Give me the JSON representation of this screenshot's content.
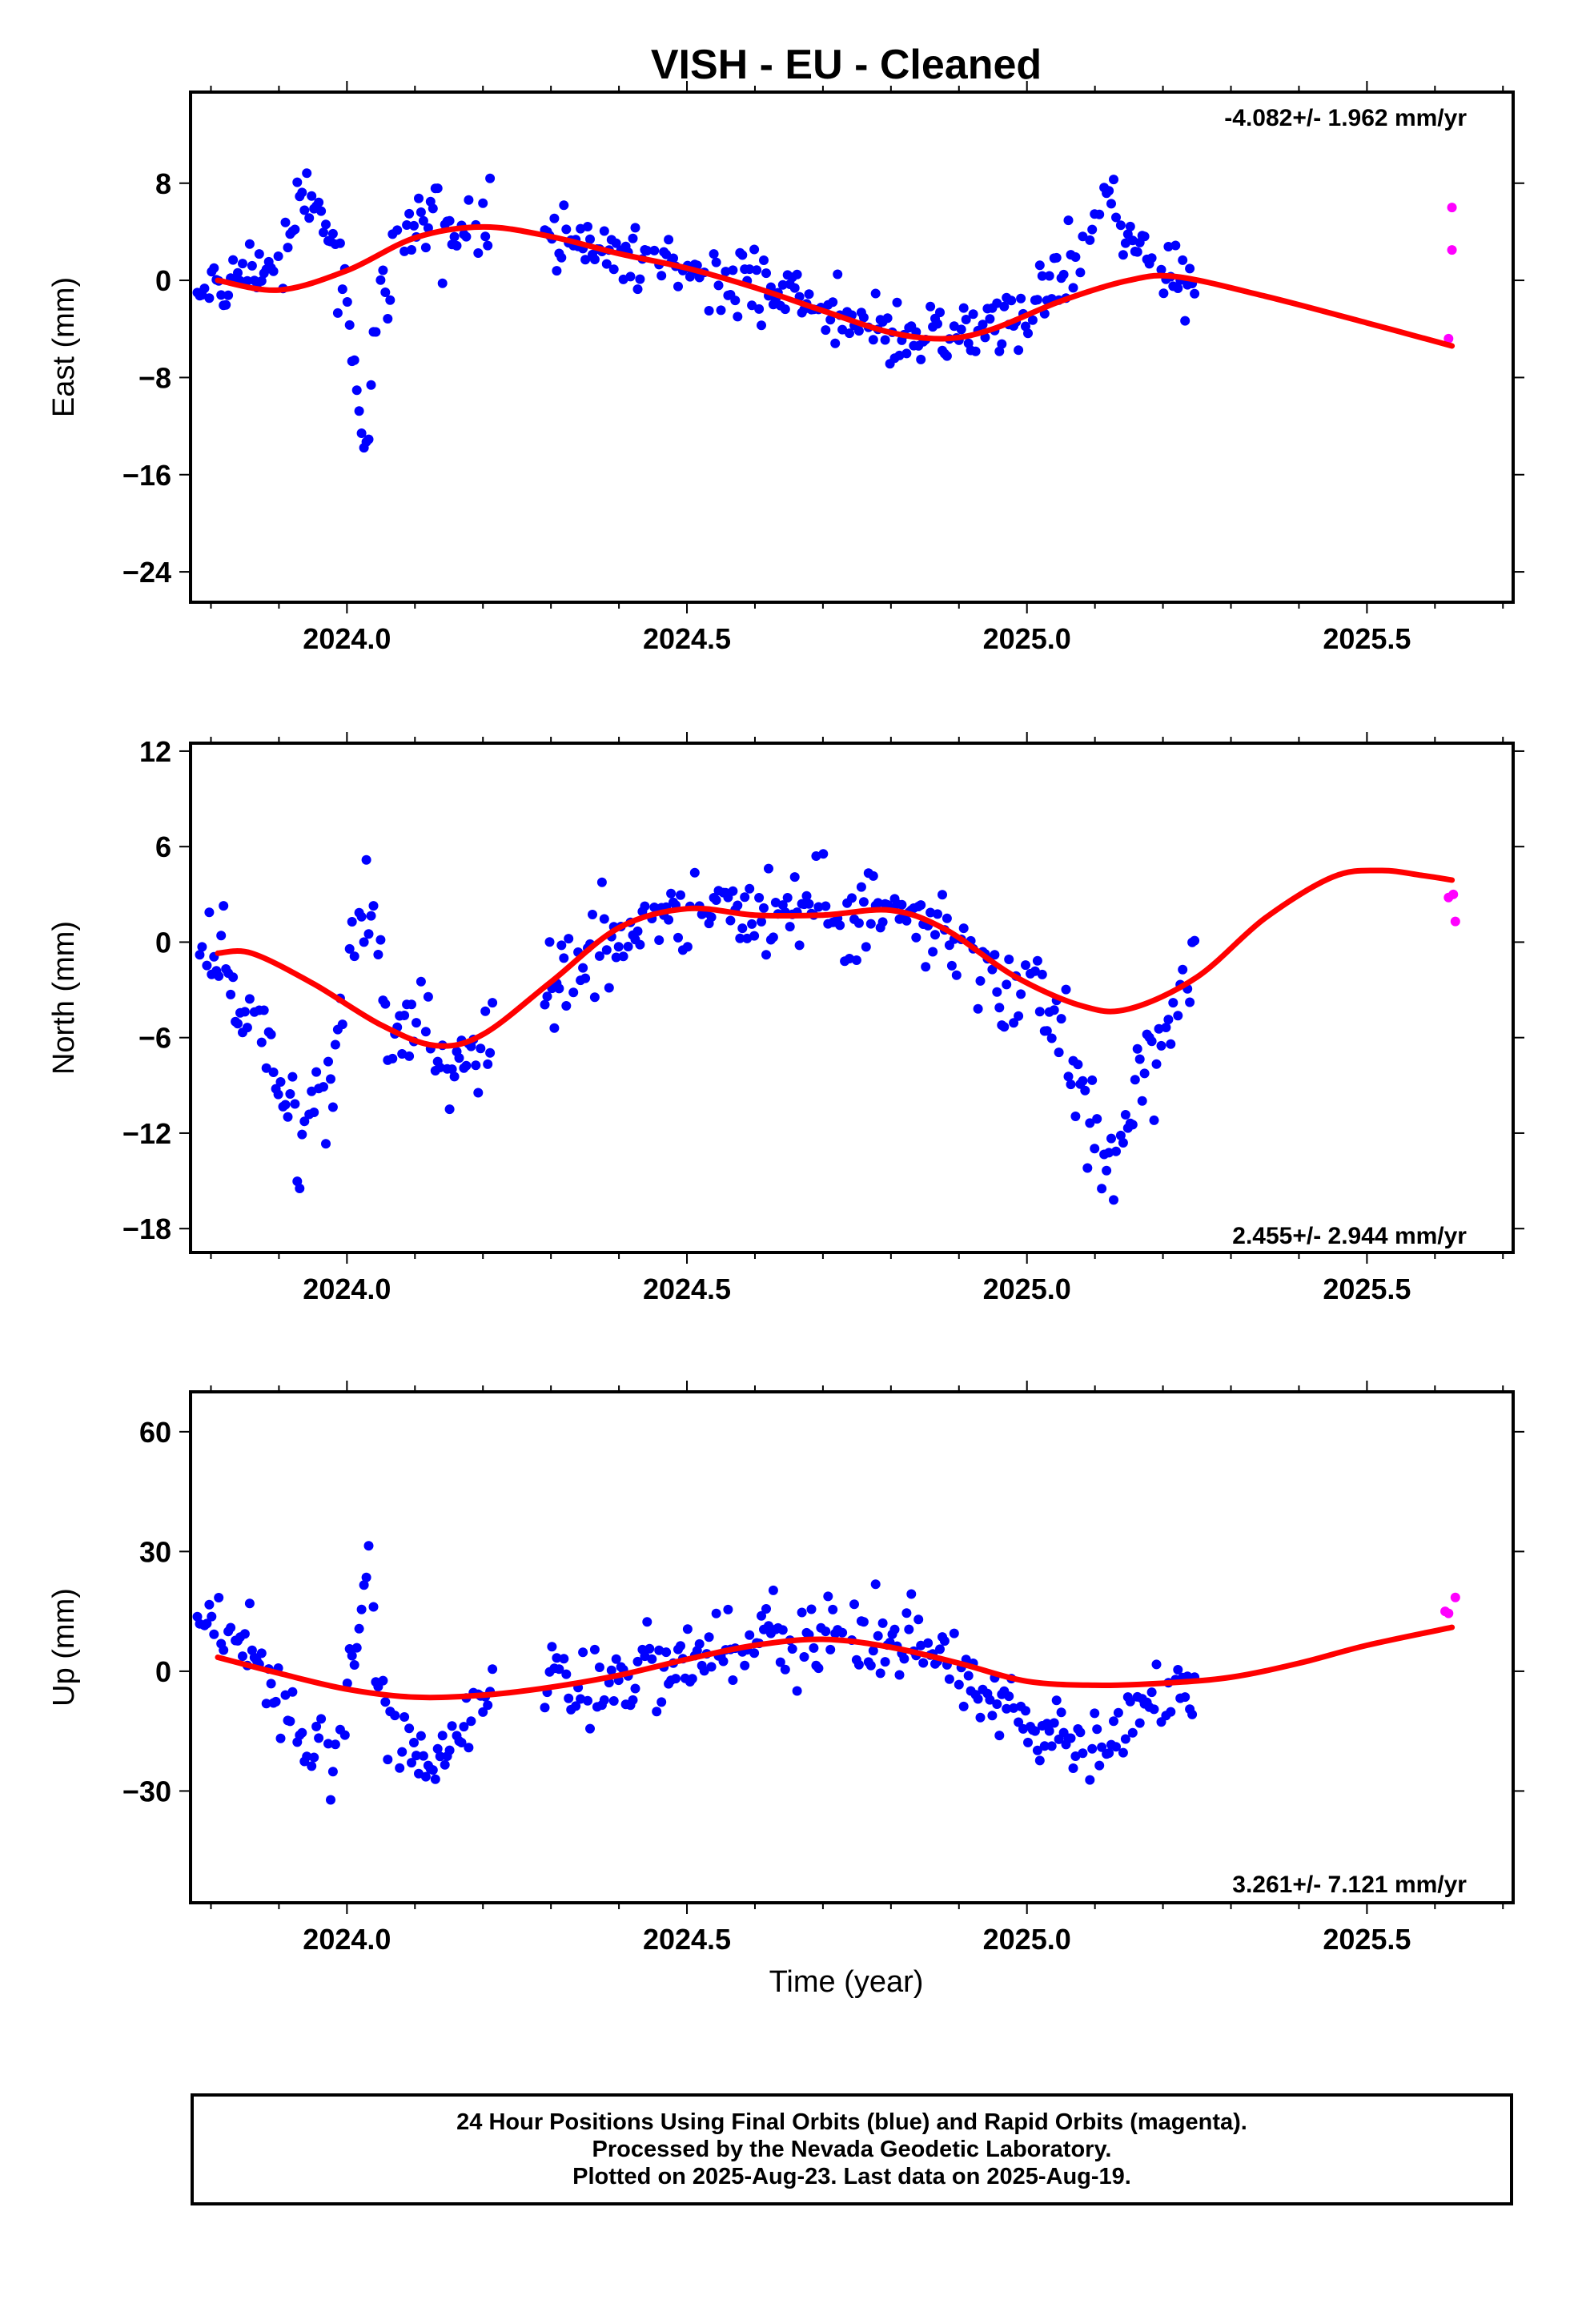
{
  "title": "VISH  - EU - Cleaned",
  "xlabel": "Time (year)",
  "footer": {
    "line1": "24 Hour Positions Using Final Orbits (blue) and Rapid Orbits (magenta).",
    "line2": "Processed by the Nevada Geodetic Laboratory.",
    "line3": "Plotted on 2025-Aug-23. Last data on 2025-Aug-19."
  },
  "colors": {
    "final": "#0000ff",
    "rapid": "#ff00ff",
    "fit": "#ff0000",
    "axis": "#000000"
  },
  "chart_data": [
    {
      "type": "scatter",
      "name": "east",
      "ylabel": "East (mm)",
      "rate": "-4.082+/- 1.962 mm/yr",
      "xlim": [
        2023.77,
        2025.715
      ],
      "ylim": [
        -26.5,
        15.5
      ],
      "xticks": [
        2024.0,
        2024.5,
        2025.0,
        2025.5
      ],
      "xtick_labels": [
        "2024.0",
        "2024.5",
        "2025.0",
        "2025.5"
      ],
      "yticks": [
        8,
        0,
        -8,
        -16,
        -24
      ],
      "ytick_labels": [
        "8",
        "0",
        "−8",
        "−16",
        "−24"
      ],
      "rapid": [
        [
          2025.625,
          6.0
        ],
        [
          2025.625,
          2.5
        ],
        [
          2025.62,
          -4.8
        ]
      ],
      "fit": [
        [
          2023.81,
          0
        ],
        [
          2023.9,
          -0.8
        ],
        [
          2024.0,
          0.8
        ],
        [
          2024.1,
          3.5
        ],
        [
          2024.2,
          4.4
        ],
        [
          2024.3,
          3.6
        ],
        [
          2024.4,
          2.2
        ],
        [
          2024.5,
          1.0
        ],
        [
          2024.6,
          -0.6
        ],
        [
          2024.7,
          -2.5
        ],
        [
          2024.8,
          -4.3
        ],
        [
          2024.88,
          -4.8
        ],
        [
          2024.95,
          -4.0
        ],
        [
          2025.05,
          -1.7
        ],
        [
          2025.15,
          0
        ],
        [
          2025.22,
          0.3
        ],
        [
          2025.35,
          -1.3
        ],
        [
          2025.5,
          -3.5
        ],
        [
          2025.625,
          -5.4
        ]
      ]
    },
    {
      "type": "scatter",
      "name": "north",
      "ylabel": "North (mm)",
      "rate": "2.455+/- 2.944 mm/yr",
      "xlim": [
        2023.77,
        2025.715
      ],
      "ylim": [
        -19.5,
        12.5
      ],
      "xticks": [
        2024.0,
        2024.5,
        2025.0,
        2025.5
      ],
      "xtick_labels": [
        "2024.0",
        "2024.5",
        "2025.0",
        "2025.5"
      ],
      "yticks": [
        12,
        6,
        0,
        -6,
        -12,
        -18
      ],
      "ytick_labels": [
        "12",
        "6",
        "0",
        "−6",
        "−12",
        "−18"
      ],
      "rapid": [
        [
          2025.62,
          2.8
        ],
        [
          2025.627,
          3.0
        ],
        [
          2025.63,
          1.3
        ]
      ],
      "fit": [
        [
          2023.81,
          -0.7
        ],
        [
          2023.86,
          -0.7
        ],
        [
          2023.95,
          -2.6
        ],
        [
          2024.05,
          -5.2
        ],
        [
          2024.13,
          -6.5
        ],
        [
          2024.2,
          -5.8
        ],
        [
          2024.3,
          -2.5
        ],
        [
          2024.4,
          0.9
        ],
        [
          2024.5,
          2.1
        ],
        [
          2024.6,
          1.7
        ],
        [
          2024.7,
          1.7
        ],
        [
          2024.8,
          2.0
        ],
        [
          2024.88,
          0.8
        ],
        [
          2024.98,
          -2.1
        ],
        [
          2025.08,
          -4.0
        ],
        [
          2025.15,
          -4.2
        ],
        [
          2025.25,
          -2.2
        ],
        [
          2025.35,
          1.5
        ],
        [
          2025.45,
          4.1
        ],
        [
          2025.52,
          4.5
        ],
        [
          2025.58,
          4.2
        ],
        [
          2025.625,
          3.9
        ]
      ]
    },
    {
      "type": "scatter",
      "name": "up",
      "ylabel": "Up (mm)",
      "rate": "3.261+/- 7.121 mm/yr",
      "xlim": [
        2023.77,
        2025.715
      ],
      "ylim": [
        -58,
        70
      ],
      "xticks": [
        2024.0,
        2024.5,
        2025.0,
        2025.5
      ],
      "xtick_labels": [
        "2024.0",
        "2024.5",
        "2025.0",
        "2025.5"
      ],
      "yticks": [
        60,
        30,
        0,
        -30
      ],
      "ytick_labels": [
        "60",
        "30",
        "0",
        "−30"
      ],
      "rapid": [
        [
          2025.615,
          15.0
        ],
        [
          2025.62,
          14.5
        ],
        [
          2025.63,
          18.5
        ]
      ],
      "fit": [
        [
          2023.81,
          3.5
        ],
        [
          2023.9,
          -0.5
        ],
        [
          2024.0,
          -4.5
        ],
        [
          2024.1,
          -6.5
        ],
        [
          2024.2,
          -6.0
        ],
        [
          2024.3,
          -4.0
        ],
        [
          2024.4,
          -1.0
        ],
        [
          2024.5,
          3.0
        ],
        [
          2024.6,
          6.5
        ],
        [
          2024.7,
          8.0
        ],
        [
          2024.8,
          6.0
        ],
        [
          2024.9,
          2.0
        ],
        [
          2025.0,
          -2.5
        ],
        [
          2025.1,
          -3.5
        ],
        [
          2025.2,
          -3.0
        ],
        [
          2025.3,
          -1.5
        ],
        [
          2025.4,
          2.0
        ],
        [
          2025.5,
          6.5
        ],
        [
          2025.625,
          11.0
        ]
      ]
    }
  ]
}
